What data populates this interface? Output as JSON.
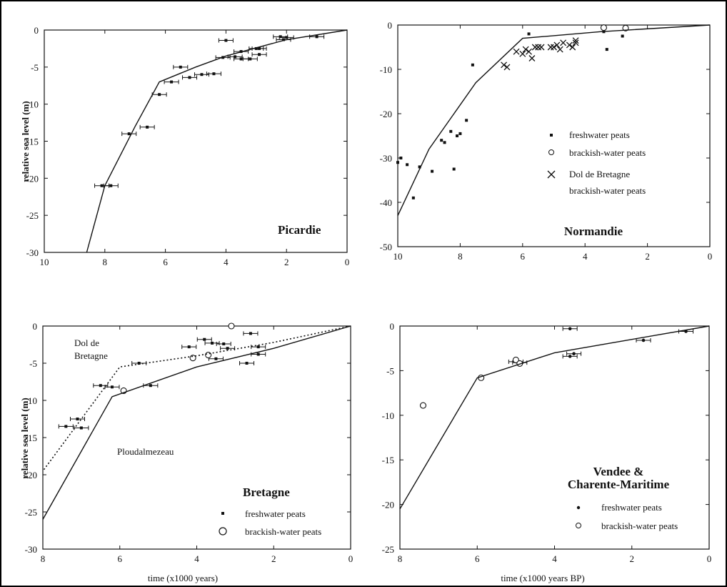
{
  "chart_data": [
    {
      "type": "scatter",
      "title": "Picardie",
      "xlabel": "",
      "ylabel": "relative sea level (m)",
      "xlim": [
        10,
        0
      ],
      "ylim": [
        -30,
        0
      ],
      "x_ticks": [
        "10",
        "8",
        "6",
        "4",
        "2",
        "0"
      ],
      "y_ticks": [
        "0",
        "-5",
        "-10",
        "-15",
        "-20",
        "-25",
        "-30"
      ],
      "grid": false,
      "legend": [],
      "series": [
        {
          "kind": "points",
          "marker": "square-errorbar",
          "x": [
            1.0,
            2.0,
            2.1,
            2.2,
            2.9,
            2.9,
            3.0,
            3.2,
            3.5,
            3.5,
            3.7,
            4.0,
            4.1,
            4.4,
            4.8,
            5.2,
            5.5,
            5.8,
            6.2,
            6.6,
            7.2,
            7.8,
            8.1
          ],
          "y": [
            -0.9,
            -1.0,
            -1.3,
            -0.9,
            -2.5,
            -3.3,
            -2.5,
            -3.9,
            -3.9,
            -2.9,
            -3.6,
            -1.4,
            -3.7,
            -5.9,
            -6.0,
            -6.4,
            -5.0,
            -7.0,
            -8.7,
            -13.1,
            -14.0,
            -21.0,
            -21.0
          ]
        },
        {
          "kind": "curve",
          "x": [
            0,
            2,
            4,
            5,
            6.2,
            7,
            8,
            8.6
          ],
          "y": [
            0,
            -1.3,
            -3.5,
            -5.0,
            -7.0,
            -13.0,
            -21.0,
            -30.0
          ]
        }
      ]
    },
    {
      "type": "scatter",
      "title": "Normandie",
      "xlabel": "",
      "ylabel": "",
      "xlim": [
        10,
        0
      ],
      "ylim": [
        -50,
        0
      ],
      "x_ticks": [
        "10",
        "8",
        "6",
        "4",
        "2",
        "0"
      ],
      "y_ticks": [
        "0",
        "-10",
        "-20",
        "-30",
        "-40",
        "-50"
      ],
      "grid": false,
      "legend": [
        {
          "marker": "square",
          "label": "freshwater peats"
        },
        {
          "marker": "circle",
          "label": "brackish-water peats"
        },
        {
          "marker": "cross",
          "label": "Dol de Bretagne",
          "label2": "brackish-water peats"
        }
      ],
      "series": [
        {
          "kind": "points",
          "marker": "square",
          "name": "freshwater peats",
          "x": [
            10.0,
            9.9,
            9.7,
            9.5,
            9.3,
            8.9,
            8.6,
            8.5,
            8.3,
            8.2,
            8.1,
            8.0,
            7.8,
            7.6,
            5.8,
            3.4,
            3.3,
            2.8
          ],
          "y": [
            -31.0,
            -30.0,
            -31.5,
            -39.0,
            -32.0,
            -33.0,
            -26.0,
            -26.5,
            -24.0,
            -32.5,
            -25.0,
            -24.5,
            -21.5,
            -9.0,
            -2.0,
            -1.5,
            -5.5,
            -2.5
          ]
        },
        {
          "kind": "points",
          "marker": "circle",
          "name": "brackish-water peats",
          "x": [
            3.4,
            2.7
          ],
          "y": [
            -0.6,
            -0.7
          ]
        },
        {
          "kind": "points",
          "marker": "cross",
          "name": "Dol de Bretagne brackish-water peats",
          "x": [
            6.6,
            6.5,
            6.2,
            6.0,
            5.9,
            5.8,
            5.7,
            5.6,
            5.5,
            5.4,
            5.1,
            5.0,
            4.9,
            4.8,
            4.7,
            4.5,
            4.4,
            4.3,
            4.3
          ],
          "y": [
            -9.0,
            -9.5,
            -6.0,
            -6.5,
            -5.5,
            -6.0,
            -7.5,
            -5.0,
            -5.0,
            -5.0,
            -5.0,
            -5.0,
            -4.5,
            -5.5,
            -4.0,
            -4.5,
            -5.0,
            -4.0,
            -3.5
          ]
        },
        {
          "kind": "curve",
          "x": [
            0,
            3.5,
            6,
            7.5,
            9,
            10
          ],
          "y": [
            0,
            -1.5,
            -3.0,
            -13.0,
            -28.0,
            -43.0
          ]
        }
      ]
    },
    {
      "type": "scatter",
      "title": "Bretagne",
      "xlabel": "time (x1000 years)",
      "ylabel": "relative sea level (m)",
      "xlim": [
        8,
        0
      ],
      "ylim": [
        -30,
        0
      ],
      "x_ticks": [
        "8",
        "6",
        "4",
        "2",
        "0"
      ],
      "y_ticks": [
        "0",
        "-5",
        "-10",
        "-15",
        "-20",
        "-25",
        "-30"
      ],
      "grid": false,
      "annotations": [
        {
          "text": "Dol de",
          "x": 6.55,
          "y": -2.3
        },
        {
          "text": "Bretagne",
          "x": 6.55,
          "y": -4.3
        },
        {
          "text": "Ploudalmezeau",
          "x": 6.8,
          "y": -17.0
        }
      ],
      "legend": [
        {
          "marker": "square",
          "label": "freshwater peats"
        },
        {
          "marker": "circle",
          "label": "brackish-water peats"
        }
      ],
      "series": [
        {
          "kind": "points",
          "marker": "square-errorbar",
          "name": "freshwater peats",
          "x": [
            7.4,
            7.1,
            7.0,
            6.5,
            6.2,
            5.5,
            5.2,
            4.2,
            3.8,
            3.6,
            3.3,
            3.2,
            2.7,
            2.6,
            2.4,
            2.4,
            3.5
          ],
          "y": [
            -13.5,
            -12.5,
            -13.7,
            -8.0,
            -8.2,
            -5.0,
            -8.0,
            -2.8,
            -1.8,
            -2.3,
            -2.4,
            -3.0,
            -5.0,
            -1.0,
            -2.8,
            -3.8,
            -4.4
          ]
        },
        {
          "kind": "points",
          "marker": "circle",
          "name": "brackish-water peats",
          "x": [
            5.9,
            4.1,
            3.7,
            3.1
          ],
          "y": [
            -8.7,
            -4.3,
            -3.9,
            0.0
          ]
        },
        {
          "kind": "curve",
          "dashed": false,
          "name": "Ploudalmezeau",
          "x": [
            0,
            2,
            4,
            6.2,
            8
          ],
          "y": [
            0,
            -3.0,
            -5.5,
            -9.5,
            -26.0
          ]
        },
        {
          "kind": "curve",
          "dashed": true,
          "name": "Dol de Bretagne",
          "x": [
            0,
            2,
            4,
            6,
            8
          ],
          "y": [
            0,
            -2.2,
            -4.0,
            -5.5,
            -19.5
          ]
        }
      ]
    },
    {
      "type": "scatter",
      "title": "Vendee &",
      "title2": "Charente-Maritime",
      "xlabel": "time (x1000 years BP)",
      "ylabel": "",
      "xlim": [
        8,
        0
      ],
      "ylim": [
        -25,
        0
      ],
      "x_ticks": [
        "8",
        "6",
        "4",
        "2",
        "0"
      ],
      "y_ticks": [
        "0",
        "-5",
        "-10",
        "-15",
        "-20",
        "-25"
      ],
      "grid": false,
      "legend": [
        {
          "marker": "dot",
          "label": "freshwater peats"
        },
        {
          "marker": "circle",
          "label": "brackish-water peats"
        }
      ],
      "series": [
        {
          "kind": "points",
          "marker": "dot-errorbar",
          "name": "freshwater peats",
          "x": [
            0.6,
            1.7,
            3.5,
            3.6,
            3.6,
            4.9,
            5.0
          ],
          "y": [
            -0.6,
            -1.6,
            -3.1,
            -3.4,
            -0.3,
            -4.1,
            -4.0
          ]
        },
        {
          "kind": "points",
          "marker": "circle",
          "name": "brackish-water peats",
          "x": [
            7.4,
            5.9,
            5.0,
            4.9
          ],
          "y": [
            -8.9,
            -5.8,
            -3.8,
            -4.2
          ]
        },
        {
          "kind": "curve",
          "x": [
            0,
            2,
            4,
            6,
            8
          ],
          "y": [
            0,
            -1.5,
            -3.0,
            -5.8,
            -20.5
          ]
        }
      ]
    }
  ]
}
